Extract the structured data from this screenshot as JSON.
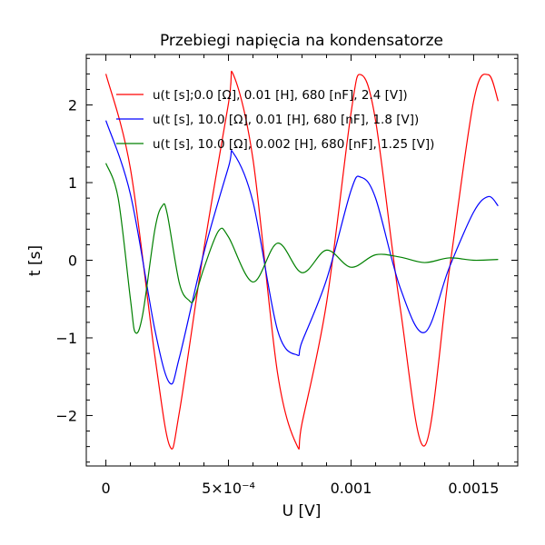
{
  "chart_data": {
    "type": "line",
    "title": "Przebiegi napięcia na kondensatorze",
    "xlabel": "U [V]",
    "ylabel": "t [s]",
    "xlim": [
      -8e-05,
      0.00168
    ],
    "ylim": [
      -2.65,
      2.65
    ],
    "x_ticks": [
      {
        "value": 0,
        "label": "0"
      },
      {
        "value": 0.0005,
        "label": "5×10⁻⁴"
      },
      {
        "value": 0.001,
        "label": "0.001"
      },
      {
        "value": 0.0015,
        "label": "0.0015"
      }
    ],
    "y_ticks": [
      {
        "value": -2,
        "label": "−2"
      },
      {
        "value": -1,
        "label": "−1"
      },
      {
        "value": 0,
        "label": "0"
      },
      {
        "value": 1,
        "label": "1"
      },
      {
        "value": 2,
        "label": "2"
      }
    ],
    "grid": false,
    "legend_position": "top-right",
    "series": [
      {
        "name": "u(t [s];0.0 [Ω], 0.01 [H], 680 [nF], 2.4 [V])",
        "color": "#ff0000",
        "x": [
          0,
          0.0001,
          0.0002,
          0.00026,
          0.0003,
          0.0004,
          0.0005,
          0.00052,
          0.0006,
          0.0007,
          0.00078,
          0.0008,
          0.0009,
          0.001,
          0.00104,
          0.0011,
          0.0012,
          0.0013,
          0.0014,
          0.0015,
          0.00156,
          0.0016
        ],
        "y": [
          2.4,
          1.18,
          -1.24,
          -2.39,
          -1.95,
          0.15,
          2.02,
          2.39,
          1.3,
          -1.45,
          -2.39,
          -2.1,
          -0.55,
          1.9,
          2.39,
          1.8,
          -0.6,
          -2.39,
          -0.15,
          2.05,
          2.39,
          2.05
        ]
      },
      {
        "name": "u(t [s], 10.0 [Ω], 0.01 [H], 680 [nF], 1.8 [V])",
        "color": "#0000ff",
        "x": [
          0,
          0.0001,
          0.0002,
          0.00026,
          0.0003,
          0.0004,
          0.0005,
          0.00052,
          0.0006,
          0.0007,
          0.00078,
          0.0008,
          0.0009,
          0.001,
          0.00104,
          0.0011,
          0.0012,
          0.0013,
          0.0014,
          0.0015,
          0.00156,
          0.0016
        ],
        "y": [
          1.8,
          0.85,
          -0.9,
          -1.58,
          -1.25,
          0.1,
          1.2,
          1.38,
          0.75,
          -0.9,
          -1.22,
          -1.05,
          -0.25,
          0.9,
          1.07,
          0.8,
          -0.35,
          -0.93,
          -0.1,
          0.62,
          0.82,
          0.7
        ]
      },
      {
        "name": "u(t [s], 10.0 [Ω], 0.002 [H], 680 [nF], 1.25 [V])",
        "color": "#008000",
        "x": [
          0,
          5e-05,
          0.0001,
          0.00012,
          0.00015,
          0.0002,
          0.00023,
          0.00025,
          0.0003,
          0.00034,
          0.00036,
          0.0004,
          0.00046,
          0.0005,
          0.0006,
          0.0007,
          0.0008,
          0.0009,
          0.001,
          0.0011,
          0.0012,
          0.0013,
          0.0014,
          0.0015,
          0.0016
        ],
        "y": [
          1.25,
          0.8,
          -0.5,
          -0.93,
          -0.7,
          0.4,
          0.7,
          0.6,
          -0.3,
          -0.52,
          -0.5,
          -0.1,
          0.38,
          0.3,
          -0.28,
          0.22,
          -0.16,
          0.13,
          -0.09,
          0.07,
          0.04,
          -0.03,
          0.03,
          0.0,
          0.01
        ]
      }
    ]
  }
}
